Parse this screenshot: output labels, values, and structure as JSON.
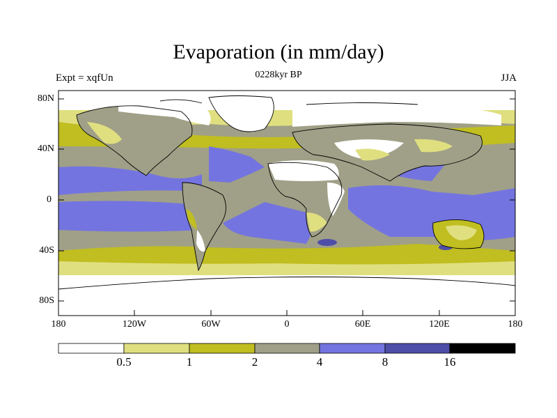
{
  "map": {
    "title": "Evaporation (in mm/day)",
    "experiment": "Expt = xqfUn",
    "period": "0228kyr BP",
    "season": "JJA",
    "lat_labels": [
      "80N",
      "40N",
      "0",
      "40S",
      "80S"
    ],
    "lon_labels": [
      "180",
      "120W",
      "60W",
      "0",
      "60E",
      "120E",
      "180"
    ]
  },
  "colorbar": {
    "levels": [
      "0.5",
      "1",
      "2",
      "4",
      "8",
      "16"
    ],
    "colors": [
      "#ffffff",
      "#e0df80",
      "#c0be20",
      "#a0a088",
      "#7474e0",
      "#4e4ea8",
      "#000000"
    ]
  },
  "palette": {
    "white": "#ffffff",
    "pale_yellow": "#e0df80",
    "olive": "#c0be20",
    "grey": "#a0a088",
    "blue": "#7474e0",
    "dark_blue": "#4e4ea8"
  }
}
